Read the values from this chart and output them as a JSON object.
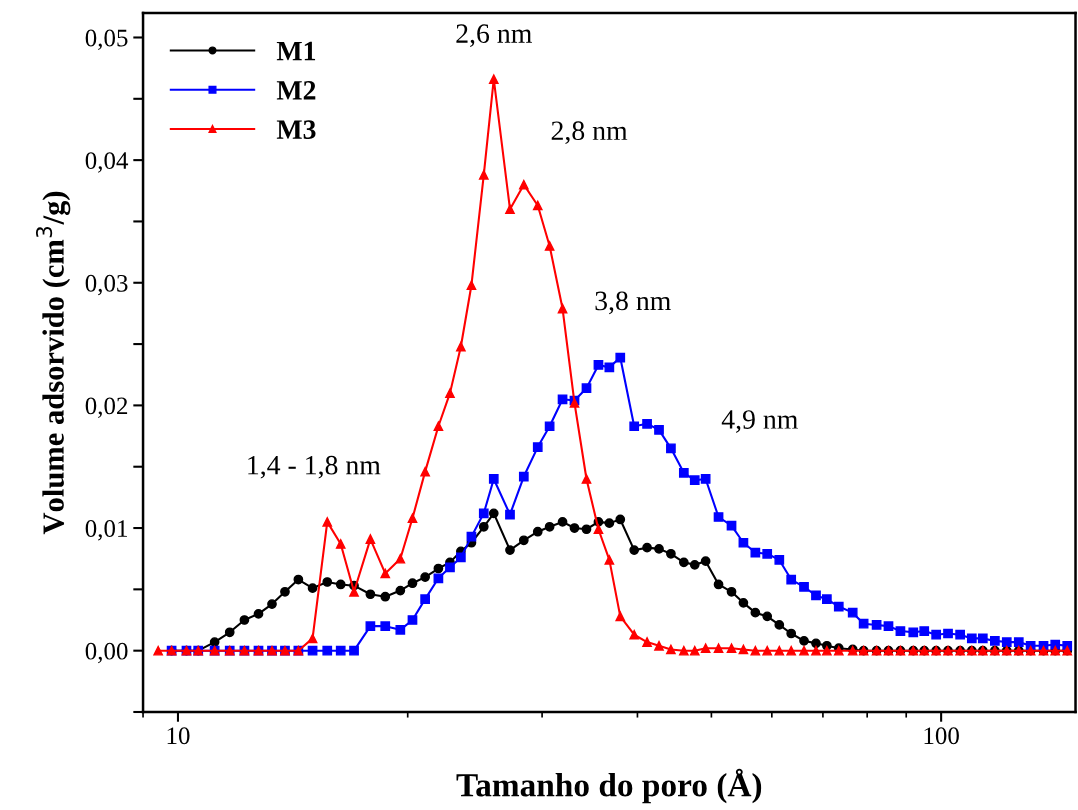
{
  "chart_data": {
    "type": "line",
    "xlabel": "Tamanho do poro (Å)",
    "ylabel": "Volume adsorvido (cm$^{3}$/g)",
    "x": [
      9.42,
      9.81,
      10.26,
      10.63,
      11.17,
      11.69,
      12.22,
      12.75,
      13.28,
      13.81,
      14.38,
      15.01,
      15.69,
      16.34,
      17.01,
      17.87,
      18.69,
      19.56,
      20.29,
      21.08,
      21.94,
      22.72,
      23.48,
      24.24,
      25.16,
      25.93,
      27.23,
      28.39,
      29.61,
      30.69,
      31.91,
      33.08,
      34.3,
      35.56,
      36.75,
      37.98,
      39.61,
      41.18,
      42.69,
      44.25,
      46.01,
      47.55,
      49.14,
      51.09,
      53.13,
      55.07,
      57.09,
      59.17,
      61.37,
      63.61,
      66.12,
      68.55,
      70.84,
      73.43,
      76.58,
      79.15,
      82.31,
      85.31,
      88.44,
      91.94,
      95.03,
      98.51,
      102.1,
      105.9,
      109.7,
      113.4,
      117.6,
      121.9,
      126.4,
      131.0,
      136.2,
      141.1,
      146.3
    ],
    "series": [
      {
        "name": "M1",
        "color": "#000000",
        "marker": "circle",
        "values": [
          null,
          0,
          0,
          0,
          0.0007,
          0.0015,
          0.0025,
          0.003,
          0.0038,
          0.0048,
          0.0058,
          0.0051,
          0.0056,
          0.0054,
          0.0053,
          0.0046,
          0.0044,
          0.0049,
          0.0055,
          0.006,
          0.0067,
          0.0072,
          0.0081,
          0.0088,
          0.0101,
          0.0112,
          0.0082,
          0.009,
          0.0097,
          0.0101,
          0.0105,
          0.01,
          0.0099,
          0.0105,
          0.0104,
          0.0107,
          0.0082,
          0.0084,
          0.0083,
          0.0079,
          0.0072,
          0.007,
          0.0073,
          0.0054,
          0.0048,
          0.0039,
          0.0031,
          0.0028,
          0.0021,
          0.0014,
          0.0008,
          0.0006,
          0.0004,
          0.0002,
          0.0001,
          0,
          0,
          0,
          0,
          0,
          0,
          0,
          0,
          0,
          0,
          0,
          0,
          0,
          0,
          0,
          0,
          0,
          0
        ]
      },
      {
        "name": "M2",
        "color": "#0000ff",
        "marker": "square",
        "values": [
          null,
          0,
          0,
          0,
          0,
          0,
          0,
          0,
          0,
          0,
          0,
          0,
          0,
          0,
          0,
          0.002,
          0.002,
          0.0017,
          0.0025,
          0.0042,
          0.0059,
          0.0068,
          0.0076,
          0.0093,
          0.0112,
          0.014,
          0.0111,
          0.0142,
          0.0166,
          0.0183,
          0.0205,
          0.0204,
          0.0214,
          0.0233,
          0.0231,
          0.0239,
          0.0183,
          0.0185,
          0.018,
          0.0165,
          0.0145,
          0.0139,
          0.014,
          0.0109,
          0.0102,
          0.0088,
          0.008,
          0.0079,
          0.0074,
          0.0058,
          0.0052,
          0.0045,
          0.0042,
          0.0036,
          0.0031,
          0.0022,
          0.0021,
          0.002,
          0.0016,
          0.0015,
          0.0016,
          0.0013,
          0.0014,
          0.0013,
          0.001,
          0.001,
          0.0008,
          0.0007,
          0.0007,
          0.0004,
          0.0004,
          0.0005,
          0.0004
        ]
      },
      {
        "name": "M3",
        "color": "#ff0000",
        "marker": "triangle",
        "values": [
          0,
          0,
          0,
          0,
          0,
          0,
          0,
          0,
          0,
          0,
          0,
          0.001,
          0.0105,
          0.0087,
          0.0048,
          0.0091,
          0.0063,
          0.0075,
          0.0108,
          0.0146,
          0.0183,
          0.021,
          0.0248,
          0.0298,
          0.0388,
          0.0466,
          0.036,
          0.038,
          0.0363,
          0.033,
          0.0279,
          0.0202,
          0.014,
          0.0099,
          0.0074,
          0.0028,
          0.0013,
          0.0007,
          0.0004,
          0.0001,
          0,
          0,
          0.0002,
          0.0002,
          0.0002,
          0.0001,
          0,
          0,
          0,
          0,
          0,
          0,
          0,
          0,
          0,
          0,
          0,
          0,
          0,
          0,
          0,
          0,
          0,
          0,
          0,
          0,
          0,
          0,
          0,
          0,
          0,
          0,
          0
        ]
      }
    ],
    "log": "x",
    "xlim": [
      9,
      150
    ],
    "xticks": [
      10,
      100
    ],
    "ylim": [
      -0.005,
      0.052
    ],
    "yticks": [
      {
        "value": -0.005,
        "label": null
      },
      {
        "value": 0,
        "label": "0,00"
      },
      {
        "value": 0.005,
        "label": null
      },
      {
        "value": 0.01,
        "label": "0,01"
      },
      {
        "value": 0.015,
        "label": null
      },
      {
        "value": 0.02,
        "label": "0,02"
      },
      {
        "value": 0.025,
        "label": null
      },
      {
        "value": 0.03,
        "label": "0,03"
      },
      {
        "value": 0.035,
        "label": null
      },
      {
        "value": 0.04,
        "label": "0,04"
      },
      {
        "value": 0.045,
        "label": null
      },
      {
        "value": 0.05,
        "label": "0,05"
      }
    ],
    "annotations": [
      {
        "text": "1,4 - 1,8 nm",
        "x": 15.69,
        "y": 0.0105
      },
      {
        "text": "2,6 nm",
        "x": 25.93,
        "y": 0.0466
      },
      {
        "text": "2,8 nm",
        "x": 28.39,
        "y": 0.038
      },
      {
        "text": "3,8 nm",
        "x": 37.98,
        "y": 0.0239
      },
      {
        "text": "4,9 nm",
        "x": 49.14,
        "y": 0.014
      }
    ],
    "legend": "top left",
    "grid": false,
    "line_style": "solid"
  }
}
